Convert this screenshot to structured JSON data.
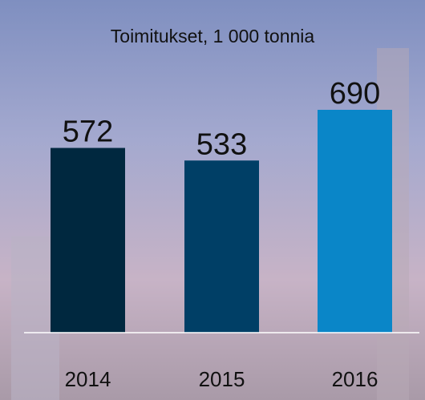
{
  "chart_data": {
    "type": "bar",
    "title": "Toimitukset, 1 000 tonnia",
    "categories": [
      "2014",
      "2015",
      "2016"
    ],
    "values": [
      572,
      533,
      690
    ],
    "colors": [
      "#00283f",
      "#003f66",
      "#0a86c8"
    ]
  }
}
